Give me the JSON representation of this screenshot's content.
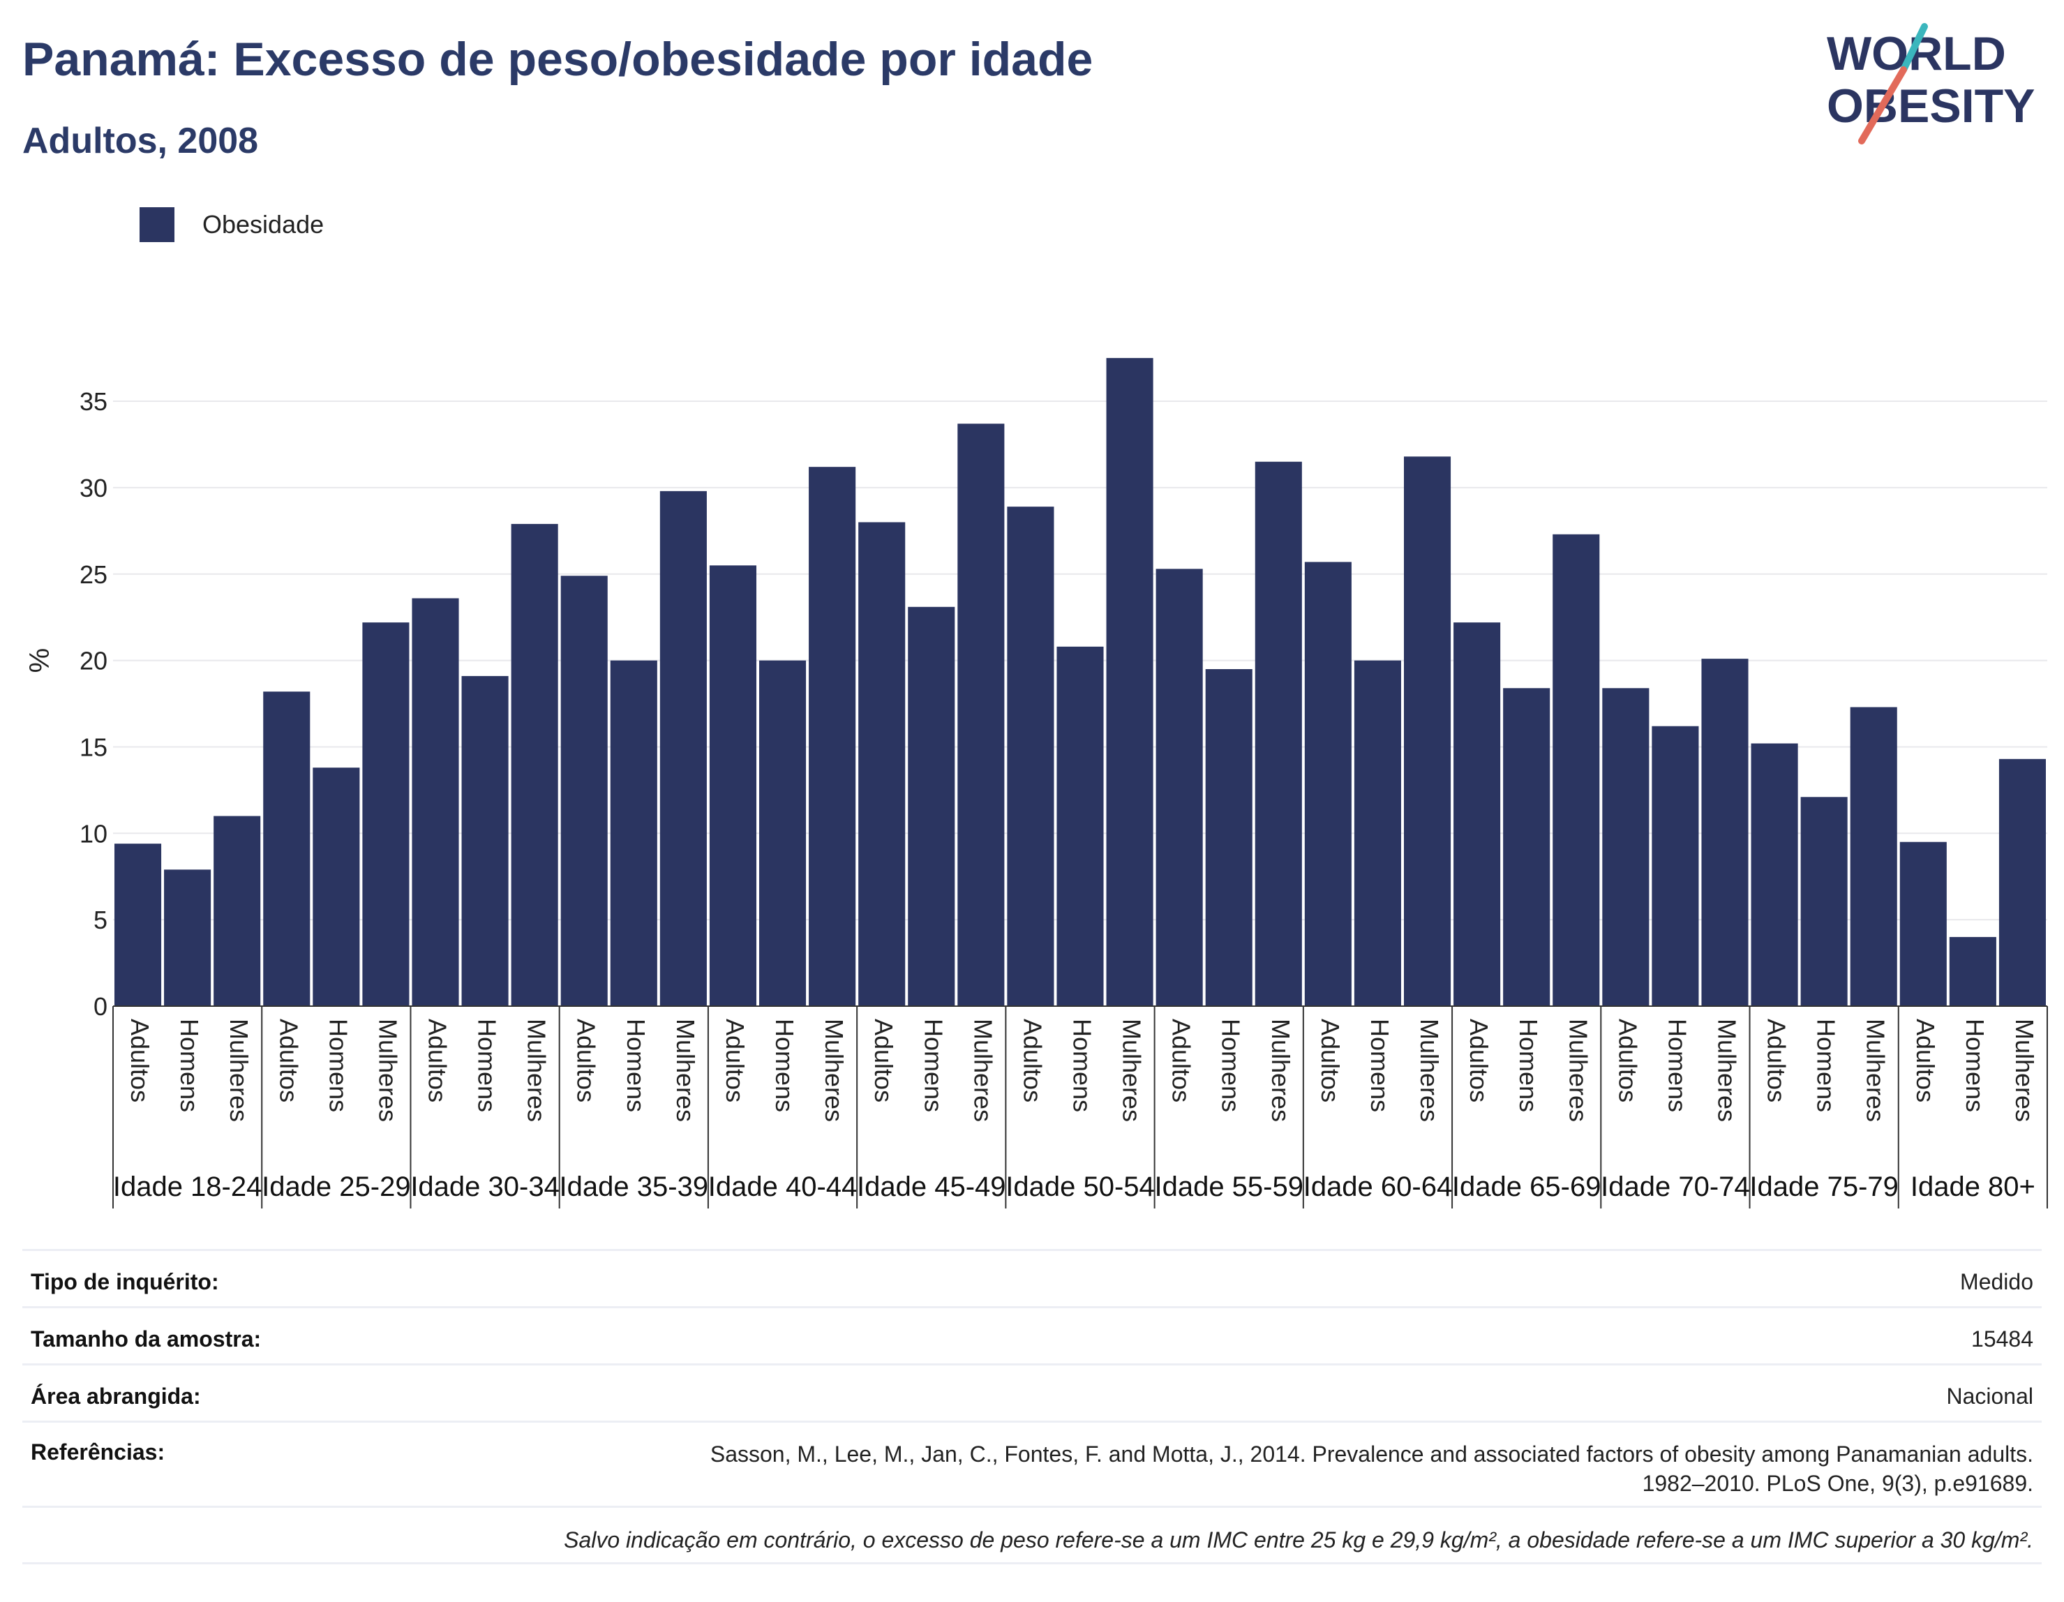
{
  "title": "Panamá: Excesso de peso/obesidade por idade",
  "subtitle": "Adultos, 2008",
  "logo": {
    "line1": "WORLD",
    "line2": "OBESITY",
    "accent_colors": [
      "#3bb6bd",
      "#e26a5a"
    ],
    "text_color": "#2b3561"
  },
  "legend": {
    "label": "Obesidade",
    "color": "#2b3561"
  },
  "chart_data": {
    "type": "bar",
    "ylabel": "%",
    "ylim": [
      0,
      40
    ],
    "yticks": [
      0,
      5,
      10,
      15,
      20,
      25,
      30,
      35
    ],
    "grid": true,
    "legend_position": "top-left",
    "bar_color": "#2b3561",
    "subcategories": [
      "Adultos",
      "Homens",
      "Mulheres"
    ],
    "groups": [
      {
        "label": "Idade 18-24",
        "values": [
          9.4,
          7.9,
          11.0
        ]
      },
      {
        "label": "Idade 25-29",
        "values": [
          18.2,
          13.8,
          22.2
        ]
      },
      {
        "label": "Idade 30-34",
        "values": [
          23.6,
          19.1,
          27.9
        ]
      },
      {
        "label": "Idade 35-39",
        "values": [
          24.9,
          20.0,
          29.8
        ]
      },
      {
        "label": "Idade 40-44",
        "values": [
          25.5,
          20.0,
          31.2
        ]
      },
      {
        "label": "Idade 45-49",
        "values": [
          28.0,
          23.1,
          33.7
        ]
      },
      {
        "label": "Idade 50-54",
        "values": [
          28.9,
          20.8,
          37.5
        ]
      },
      {
        "label": "Idade 55-59",
        "values": [
          25.3,
          19.5,
          31.5
        ]
      },
      {
        "label": "Idade 60-64",
        "values": [
          25.7,
          20.0,
          31.8
        ]
      },
      {
        "label": "Idade 65-69",
        "values": [
          22.2,
          18.4,
          27.3
        ]
      },
      {
        "label": "Idade 70-74",
        "values": [
          18.4,
          16.2,
          20.1
        ]
      },
      {
        "label": "Idade 75-79",
        "values": [
          15.2,
          12.1,
          17.3
        ]
      },
      {
        "label": "Idade 80+",
        "values": [
          9.5,
          4.0,
          14.3
        ]
      }
    ]
  },
  "info": {
    "survey_label": "Tipo de inquérito:",
    "survey_value": "Medido",
    "sample_label": "Tamanho da amostra:",
    "sample_value": "15484",
    "area_label": "Área abrangida:",
    "area_value": "Nacional",
    "ref_label": "Referências:",
    "ref_line1": "Sasson, M., Lee, M., Jan, C., Fontes, F. and Motta, J., 2014. Prevalence and associated factors of obesity among Panamanian adults.",
    "ref_line2": "1982–2010. PLoS One, 9(3), p.e91689.",
    "note": "Salvo indicação em contrário, o excesso de peso refere-se a um IMC entre 25 kg e 29,9 kg/m², a obesidade refere-se a um IMC superior a 30 kg/m²."
  }
}
